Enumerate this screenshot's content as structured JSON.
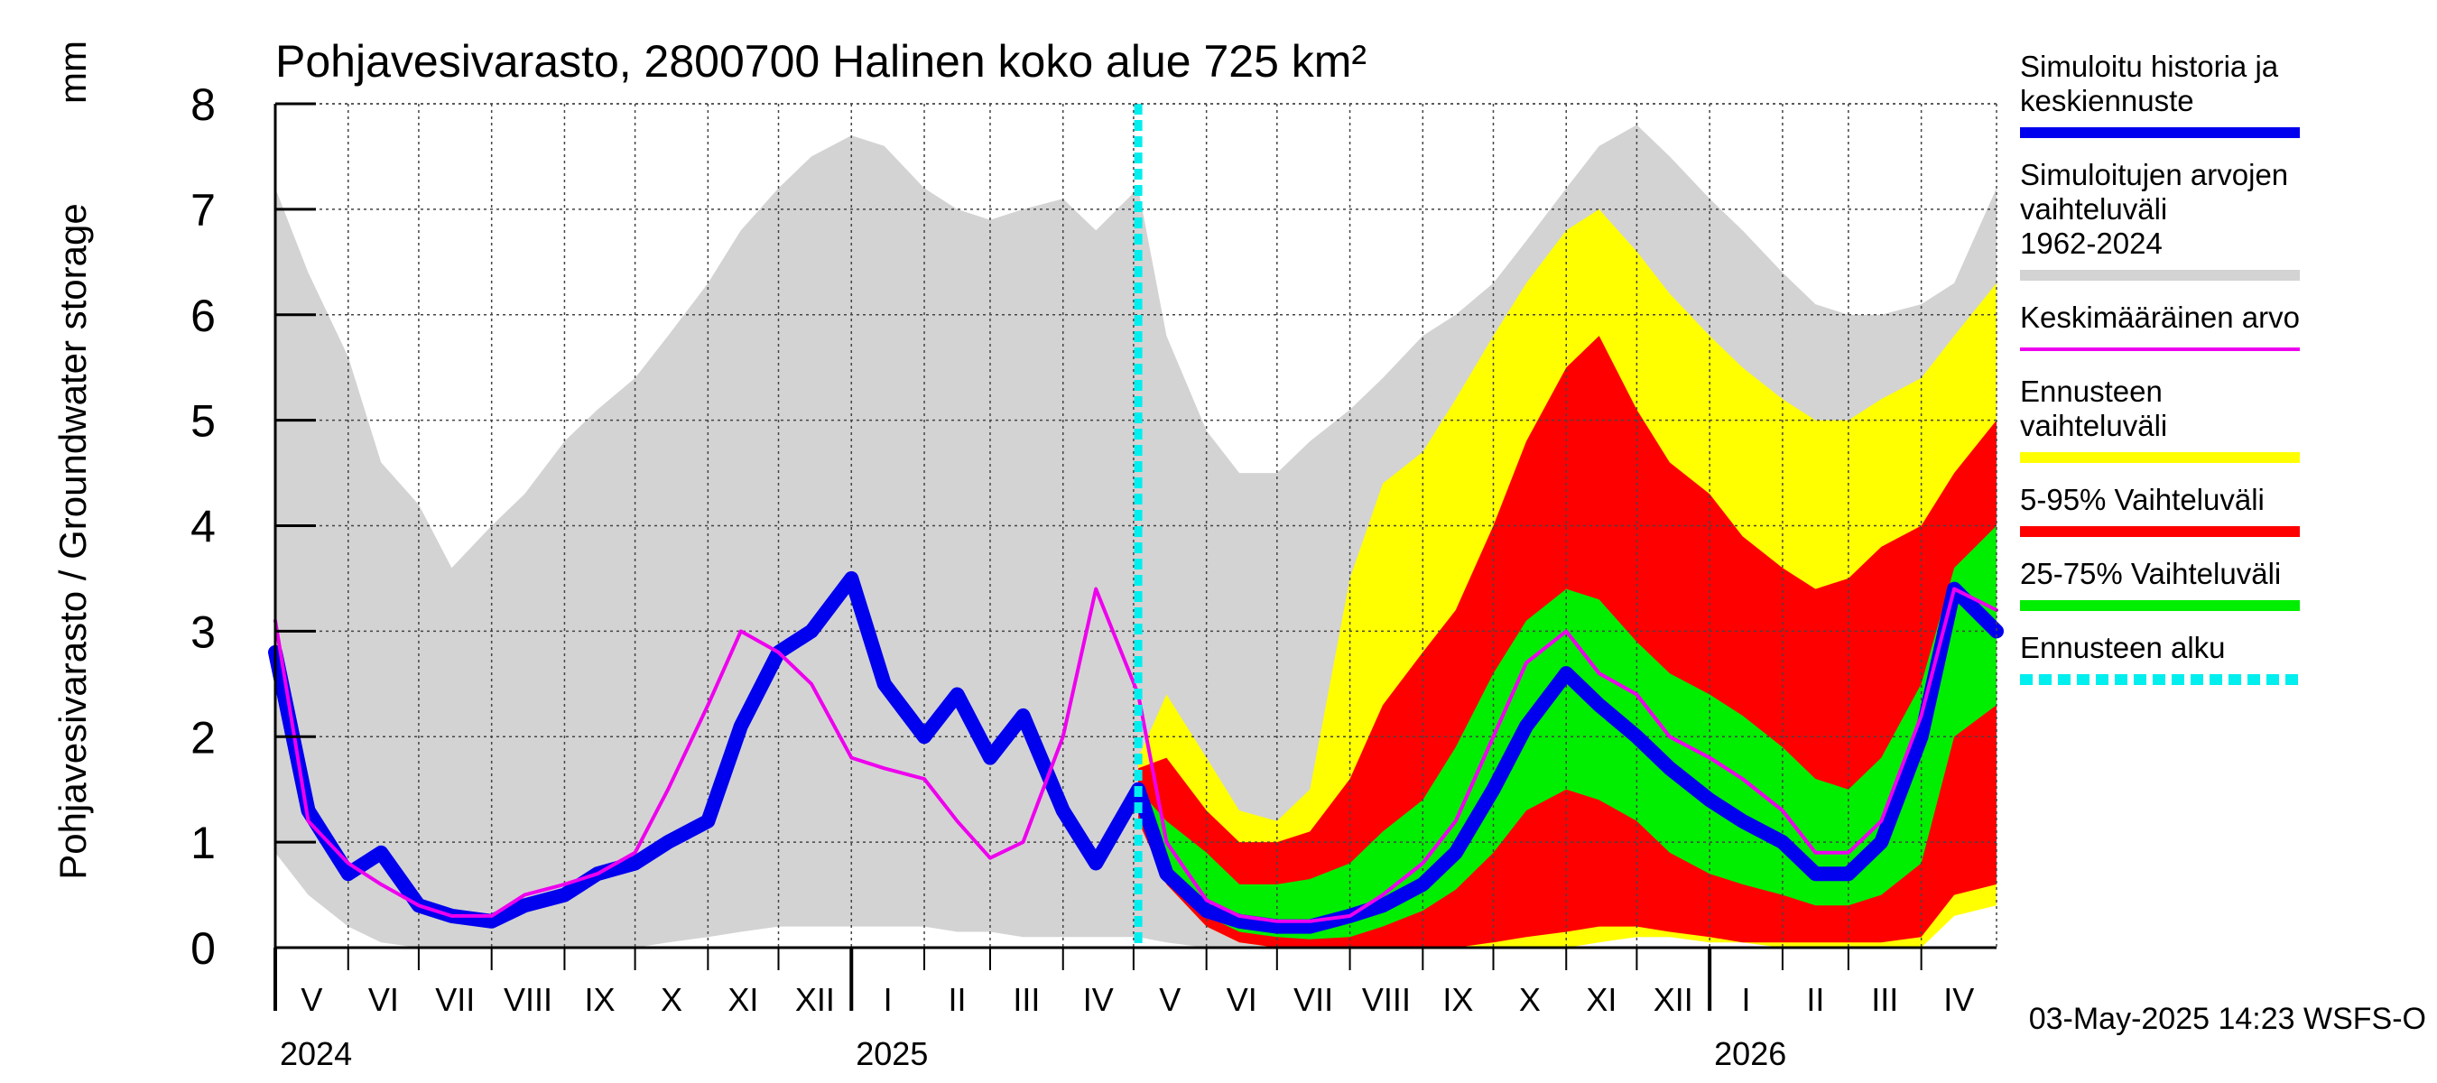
{
  "chart_data": {
    "type": "area",
    "title": "Pohjavesivarasto, 2800700 Halinen koko alue 725 km²",
    "ylabel": "Pohjavesivarasto / Groundwater storage",
    "yunit": "mm",
    "ylim": [
      0,
      8
    ],
    "yticks": [
      0,
      1,
      2,
      3,
      4,
      5,
      6,
      7,
      8
    ],
    "xlim": [
      "2024-05-01",
      "2026-05-03"
    ],
    "months": [
      {
        "label": "V",
        "start": "2024-05-01"
      },
      {
        "label": "VI",
        "start": "2024-06-01"
      },
      {
        "label": "VII",
        "start": "2024-07-01"
      },
      {
        "label": "VIII",
        "start": "2024-08-01"
      },
      {
        "label": "IX",
        "start": "2024-09-01"
      },
      {
        "label": "X",
        "start": "2024-10-01"
      },
      {
        "label": "XI",
        "start": "2024-11-01"
      },
      {
        "label": "XII",
        "start": "2024-12-01"
      },
      {
        "label": "I",
        "start": "2025-01-01"
      },
      {
        "label": "II",
        "start": "2025-02-01"
      },
      {
        "label": "III",
        "start": "2025-03-01"
      },
      {
        "label": "IV",
        "start": "2025-04-01"
      },
      {
        "label": "V",
        "start": "2025-05-01"
      },
      {
        "label": "VI",
        "start": "2025-06-01"
      },
      {
        "label": "VII",
        "start": "2025-07-01"
      },
      {
        "label": "VIII",
        "start": "2025-08-01"
      },
      {
        "label": "IX",
        "start": "2025-09-01"
      },
      {
        "label": "X",
        "start": "2025-10-01"
      },
      {
        "label": "XI",
        "start": "2025-11-01"
      },
      {
        "label": "XII",
        "start": "2025-12-01"
      },
      {
        "label": "I",
        "start": "2026-01-01"
      },
      {
        "label": "II",
        "start": "2026-02-01"
      },
      {
        "label": "III",
        "start": "2026-03-01"
      },
      {
        "label": "IV",
        "start": "2026-04-01"
      }
    ],
    "years": [
      {
        "label": "2024",
        "date": "2024-05-01"
      },
      {
        "label": "2025",
        "date": "2025-01-01"
      },
      {
        "label": "2026",
        "date": "2026-01-01"
      }
    ],
    "forecast_start": "2025-05-03",
    "grid": true,
    "legend_position": "right",
    "series": [
      {
        "name": "Simuloitujen arvojen vaihteluväli 1962-2024",
        "kind": "band",
        "color": "#d3d3d3",
        "x": [
          "2024-05-01",
          "2024-05-15",
          "2024-06-01",
          "2024-06-15",
          "2024-07-01",
          "2024-07-15",
          "2024-08-01",
          "2024-08-15",
          "2024-09-01",
          "2024-09-15",
          "2024-10-01",
          "2024-10-15",
          "2024-11-01",
          "2024-11-15",
          "2024-12-01",
          "2024-12-15",
          "2025-01-01",
          "2025-01-15",
          "2025-02-01",
          "2025-02-15",
          "2025-03-01",
          "2025-03-15",
          "2025-04-01",
          "2025-04-15",
          "2025-05-03",
          "2025-05-15",
          "2025-06-01",
          "2025-06-15",
          "2025-07-01",
          "2025-07-15",
          "2025-08-01",
          "2025-08-15",
          "2025-09-01",
          "2025-09-15",
          "2025-10-01",
          "2025-10-15",
          "2025-11-01",
          "2025-11-15",
          "2025-12-01",
          "2025-12-15",
          "2026-01-01",
          "2026-01-15",
          "2026-02-01",
          "2026-02-15",
          "2026-03-01",
          "2026-03-15",
          "2026-04-01",
          "2026-04-15",
          "2026-05-03"
        ],
        "upper": [
          7.2,
          6.4,
          5.6,
          4.6,
          4.2,
          3.6,
          4.0,
          4.3,
          4.8,
          5.1,
          5.4,
          5.8,
          6.3,
          6.8,
          7.2,
          7.5,
          7.7,
          7.6,
          7.2,
          7.0,
          6.9,
          7.0,
          7.1,
          6.8,
          7.2,
          5.8,
          4.9,
          4.5,
          4.5,
          4.8,
          5.1,
          5.4,
          5.8,
          6.0,
          6.3,
          6.7,
          7.2,
          7.6,
          7.8,
          7.5,
          7.1,
          6.8,
          6.4,
          6.1,
          6.0,
          6.0,
          6.1,
          6.3,
          7.2
        ],
        "lower": [
          0.9,
          0.5,
          0.2,
          0.05,
          0,
          0,
          0,
          0,
          0,
          0,
          0,
          0.05,
          0.1,
          0.15,
          0.2,
          0.2,
          0.2,
          0.2,
          0.2,
          0.15,
          0.15,
          0.1,
          0.1,
          0.1,
          0.1,
          0.05,
          0,
          0,
          0,
          0,
          0,
          0,
          0,
          0,
          0,
          0,
          0.05,
          0.1,
          0.1,
          0.1,
          0.1,
          0.05,
          0.05,
          0.05,
          0.05,
          0.05,
          0.1,
          0.4,
          0.5
        ]
      },
      {
        "name": "Ennusteen vaihteluväli",
        "kind": "band",
        "color": "#ffff00",
        "x": [
          "2025-05-03",
          "2025-05-15",
          "2025-06-01",
          "2025-06-15",
          "2025-07-01",
          "2025-07-15",
          "2025-08-01",
          "2025-08-15",
          "2025-09-01",
          "2025-09-15",
          "2025-10-01",
          "2025-10-15",
          "2025-11-01",
          "2025-11-15",
          "2025-12-01",
          "2025-12-15",
          "2026-01-01",
          "2026-01-15",
          "2026-02-01",
          "2026-02-15",
          "2026-03-01",
          "2026-03-15",
          "2026-04-01",
          "2026-04-15",
          "2026-05-03"
        ],
        "upper": [
          1.8,
          2.4,
          1.8,
          1.3,
          1.2,
          1.5,
          3.5,
          4.4,
          4.7,
          5.2,
          5.8,
          6.3,
          6.8,
          7.0,
          6.6,
          6.2,
          5.8,
          5.5,
          5.2,
          5.0,
          5.0,
          5.2,
          5.4,
          5.8,
          6.3
        ],
        "lower": [
          1.2,
          0.6,
          0.2,
          0.05,
          0,
          0,
          0,
          0,
          0,
          0,
          0,
          0,
          0,
          0.05,
          0.1,
          0.1,
          0.05,
          0.05,
          0,
          0,
          0,
          0,
          0,
          0.3,
          0.4
        ]
      },
      {
        "name": "5-95% Vaihteluväli",
        "kind": "band",
        "color": "#ff0000",
        "x": [
          "2025-05-03",
          "2025-05-15",
          "2025-06-01",
          "2025-06-15",
          "2025-07-01",
          "2025-07-15",
          "2025-08-01",
          "2025-08-15",
          "2025-09-01",
          "2025-09-15",
          "2025-10-01",
          "2025-10-15",
          "2025-11-01",
          "2025-11-15",
          "2025-12-01",
          "2025-12-15",
          "2026-01-01",
          "2026-01-15",
          "2026-02-01",
          "2026-02-15",
          "2026-03-01",
          "2026-03-15",
          "2026-04-01",
          "2026-04-15",
          "2026-05-03"
        ],
        "upper": [
          1.7,
          1.8,
          1.3,
          1.0,
          1.0,
          1.1,
          1.6,
          2.3,
          2.8,
          3.2,
          4.0,
          4.8,
          5.5,
          5.8,
          5.1,
          4.6,
          4.3,
          3.9,
          3.6,
          3.4,
          3.5,
          3.8,
          4.0,
          4.5,
          5.0
        ],
        "lower": [
          1.2,
          0.6,
          0.2,
          0.05,
          0,
          0,
          0,
          0,
          0,
          0,
          0.05,
          0.1,
          0.15,
          0.2,
          0.2,
          0.15,
          0.1,
          0.05,
          0.05,
          0.05,
          0.05,
          0.05,
          0.1,
          0.5,
          0.6
        ]
      },
      {
        "name": "25-75% Vaihteluväli",
        "kind": "band",
        "color": "#00ee00",
        "x": [
          "2025-05-03",
          "2025-05-15",
          "2025-06-01",
          "2025-06-15",
          "2025-07-01",
          "2025-07-15",
          "2025-08-01",
          "2025-08-15",
          "2025-09-01",
          "2025-09-15",
          "2025-10-01",
          "2025-10-15",
          "2025-11-01",
          "2025-11-15",
          "2025-12-01",
          "2025-12-15",
          "2026-01-01",
          "2026-01-15",
          "2026-02-01",
          "2026-02-15",
          "2026-03-01",
          "2026-03-15",
          "2026-04-01",
          "2026-04-15",
          "2026-05-03"
        ],
        "upper": [
          1.5,
          1.2,
          0.9,
          0.6,
          0.6,
          0.65,
          0.8,
          1.1,
          1.4,
          1.9,
          2.6,
          3.1,
          3.4,
          3.3,
          2.9,
          2.6,
          2.4,
          2.2,
          1.9,
          1.6,
          1.5,
          1.8,
          2.5,
          3.6,
          4.0
        ],
        "lower": [
          1.3,
          0.8,
          0.3,
          0.15,
          0.1,
          0.08,
          0.1,
          0.2,
          0.35,
          0.55,
          0.9,
          1.3,
          1.5,
          1.4,
          1.2,
          0.9,
          0.7,
          0.6,
          0.5,
          0.4,
          0.4,
          0.5,
          0.8,
          2.0,
          2.3
        ]
      },
      {
        "name": "Simuloitu historia ja keskiennuste",
        "kind": "line",
        "color": "#0000ee",
        "x": [
          "2024-05-01",
          "2024-05-15",
          "2024-06-01",
          "2024-06-15",
          "2024-07-01",
          "2024-07-15",
          "2024-08-01",
          "2024-08-15",
          "2024-09-01",
          "2024-09-15",
          "2024-10-01",
          "2024-10-15",
          "2024-11-01",
          "2024-11-15",
          "2024-12-01",
          "2024-12-15",
          "2025-01-01",
          "2025-01-15",
          "2025-02-01",
          "2025-02-15",
          "2025-03-01",
          "2025-03-15",
          "2025-04-01",
          "2025-04-15",
          "2025-05-03",
          "2025-05-15",
          "2025-06-01",
          "2025-06-15",
          "2025-07-01",
          "2025-07-15",
          "2025-08-01",
          "2025-08-15",
          "2025-09-01",
          "2025-09-15",
          "2025-10-01",
          "2025-10-15",
          "2025-11-01",
          "2025-11-15",
          "2025-12-01",
          "2025-12-15",
          "2026-01-01",
          "2026-01-15",
          "2026-02-01",
          "2026-02-15",
          "2026-03-01",
          "2026-03-15",
          "2026-04-01",
          "2026-04-15",
          "2026-05-03"
        ],
        "values": [
          2.8,
          1.3,
          0.7,
          0.9,
          0.4,
          0.3,
          0.25,
          0.4,
          0.5,
          0.7,
          0.8,
          1.0,
          1.2,
          2.1,
          2.8,
          3.0,
          3.5,
          2.5,
          2.0,
          2.4,
          1.8,
          2.2,
          1.3,
          0.8,
          1.5,
          0.7,
          0.35,
          0.25,
          0.2,
          0.2,
          0.3,
          0.4,
          0.6,
          0.9,
          1.5,
          2.1,
          2.6,
          2.3,
          2.0,
          1.7,
          1.4,
          1.2,
          1.0,
          0.7,
          0.7,
          1.0,
          2.0,
          3.4,
          3.0
        ]
      },
      {
        "name": "Keskimääräinen arvo",
        "kind": "line",
        "color": "#ee00ee",
        "x": [
          "2024-05-01",
          "2024-05-15",
          "2024-06-01",
          "2024-06-15",
          "2024-07-01",
          "2024-07-15",
          "2024-08-01",
          "2024-08-15",
          "2024-09-01",
          "2024-09-15",
          "2024-10-01",
          "2024-10-15",
          "2024-11-01",
          "2024-11-15",
          "2024-12-01",
          "2024-12-15",
          "2025-01-01",
          "2025-01-15",
          "2025-02-01",
          "2025-02-15",
          "2025-03-01",
          "2025-03-15",
          "2025-04-01",
          "2025-04-15",
          "2025-05-03",
          "2025-05-15",
          "2025-06-01",
          "2025-06-15",
          "2025-07-01",
          "2025-07-15",
          "2025-08-01",
          "2025-08-15",
          "2025-09-01",
          "2025-09-15",
          "2025-10-01",
          "2025-10-15",
          "2025-11-01",
          "2025-11-15",
          "2025-12-01",
          "2025-12-15",
          "2026-01-01",
          "2026-01-15",
          "2026-02-01",
          "2026-02-15",
          "2026-03-01",
          "2026-03-15",
          "2026-04-01",
          "2026-04-15",
          "2026-05-03"
        ],
        "values": [
          3.1,
          1.2,
          0.8,
          0.6,
          0.4,
          0.3,
          0.3,
          0.5,
          0.6,
          0.7,
          0.9,
          1.5,
          2.3,
          3.0,
          2.8,
          2.5,
          1.8,
          1.7,
          1.6,
          1.2,
          0.85,
          1.0,
          2.0,
          3.4,
          2.4,
          1.0,
          0.45,
          0.3,
          0.25,
          0.25,
          0.3,
          0.5,
          0.8,
          1.2,
          2.0,
          2.7,
          3.0,
          2.6,
          2.4,
          2.0,
          1.8,
          1.6,
          1.3,
          0.9,
          0.9,
          1.2,
          2.2,
          3.4,
          3.2
        ]
      }
    ],
    "legend": [
      {
        "label": "Simuloitu historia ja keskiennuste",
        "color": "#0000ee",
        "style": "solid"
      },
      {
        "label": "Simuloitujen arvojen vaihteluväli 1962-2024",
        "color": "#d3d3d3",
        "style": "solid"
      },
      {
        "label": "Keskimääräinen arvo",
        "color": "#ee00ee",
        "style": "thin"
      },
      {
        "label": "Ennusteen vaihteluväli",
        "color": "#ffff00",
        "style": "solid"
      },
      {
        "label": "5-95% Vaihteluväli",
        "color": "#ff0000",
        "style": "solid"
      },
      {
        "label": "25-75% Vaihteluväli",
        "color": "#00ee00",
        "style": "solid"
      },
      {
        "label": "Ennusteen alku",
        "color": "#00eeee",
        "style": "dashed"
      }
    ],
    "footer": "03-May-2025 14:23 WSFS-O"
  }
}
